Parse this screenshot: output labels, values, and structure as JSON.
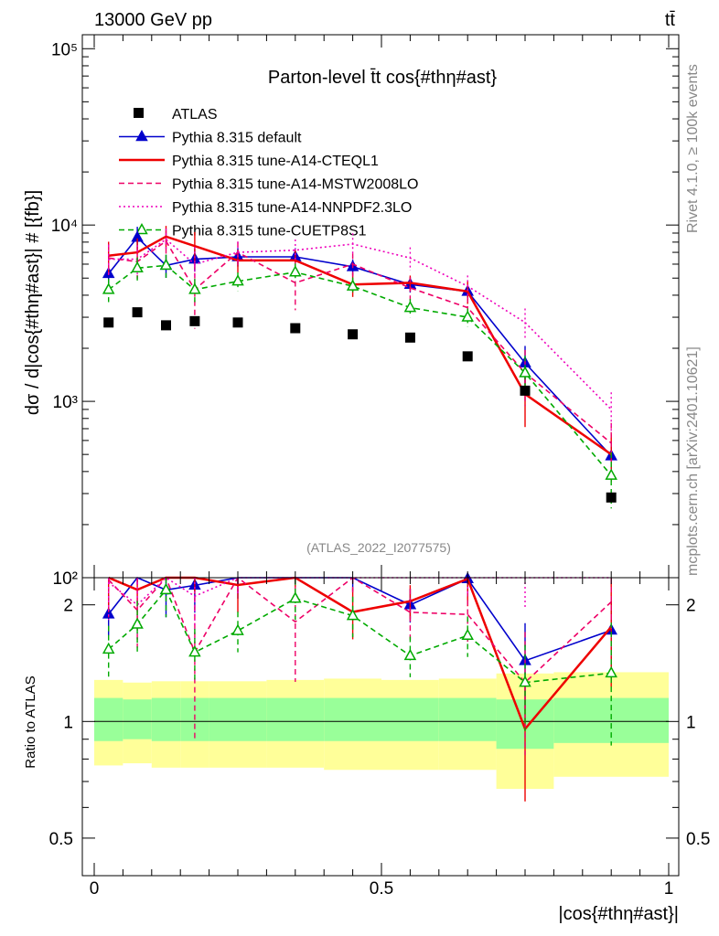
{
  "header": {
    "energy_label": "13000 GeV pp",
    "process_label": "tt̄"
  },
  "side_labels": {
    "rivet": "Rivet 4.1.0, ≥ 100k events",
    "mcplots": "mcplots.cern.ch [arXiv:2401.10621]"
  },
  "chart_data": {
    "type": "line",
    "title": "Parton-level t̄t cos{#thη#ast}",
    "analysis_tag": "(ATLAS_2022_I2077575)",
    "xlabel": "|cos{#thη#ast}|",
    "ylabel": "dσ / d|cos{#thη#ast}| # [{fb}]",
    "ratio_ylabel": "Ratio to ATLAS",
    "xlim": [
      0,
      1
    ],
    "ylim": [
      100,
      120000
    ],
    "ratio_ylim": [
      0.4,
      2.35
    ],
    "y_scale": "log",
    "x_ticks": [
      {
        "value": 0,
        "label": "0"
      },
      {
        "value": 0.5,
        "label": "0.5"
      },
      {
        "value": 1,
        "label": "1"
      }
    ],
    "y_ticks": [
      {
        "value": 100,
        "label": "10²"
      },
      {
        "value": 1000,
        "label": "10³"
      },
      {
        "value": 10000,
        "label": "10⁴"
      },
      {
        "value": 100000,
        "label": "10⁵"
      }
    ],
    "ratio_ticks": [
      {
        "value": 0.5,
        "label": "0.5"
      },
      {
        "value": 1,
        "label": "1"
      },
      {
        "value": 2,
        "label": "2"
      }
    ],
    "bins": [
      [
        0,
        0.05
      ],
      [
        0.05,
        0.1
      ],
      [
        0.1,
        0.15
      ],
      [
        0.15,
        0.2
      ],
      [
        0.2,
        0.3
      ],
      [
        0.3,
        0.4
      ],
      [
        0.4,
        0.5
      ],
      [
        0.5,
        0.6
      ],
      [
        0.6,
        0.7
      ],
      [
        0.7,
        0.8
      ],
      [
        0.8,
        1.0
      ]
    ],
    "x": [
      0.025,
      0.075,
      0.125,
      0.175,
      0.25,
      0.35,
      0.45,
      0.55,
      0.65,
      0.75,
      0.9
    ],
    "data": {
      "name": "ATLAS",
      "values": [
        2800,
        3200,
        2700,
        2850,
        2800,
        2600,
        2400,
        2300,
        1800,
        1150,
        285
      ]
    },
    "uncertainty_bands": {
      "stat_up": [
        1.15,
        1.14,
        1.15,
        1.15,
        1.15,
        1.15,
        1.15,
        1.15,
        1.15,
        1.14,
        1.15
      ],
      "stat_dn": [
        0.89,
        0.9,
        0.89,
        0.89,
        0.89,
        0.89,
        0.89,
        0.89,
        0.89,
        0.85,
        0.88
      ],
      "tot_up": [
        1.28,
        1.26,
        1.27,
        1.27,
        1.27,
        1.28,
        1.29,
        1.28,
        1.29,
        1.33,
        1.34
      ],
      "tot_dn": [
        0.77,
        0.78,
        0.76,
        0.76,
        0.76,
        0.76,
        0.75,
        0.75,
        0.75,
        0.67,
        0.72
      ]
    },
    "series": [
      {
        "name": "Pythia 8.315 default",
        "color": "#0000cc",
        "style": "solid",
        "marker": "triangle-filled",
        "values": [
          5300,
          8500,
          5900,
          6400,
          6600,
          6600,
          5800,
          4600,
          4200,
          1650,
          490
        ],
        "rel_err": [
          0.12,
          0.15,
          0.15,
          0.15,
          0.12,
          0.12,
          0.1,
          0.1,
          0.1,
          0.25,
          0.2
        ]
      },
      {
        "name": "Pythia 8.315 tune-A14-CTEQL1",
        "color": "#ee0000",
        "style": "solid",
        "marker": "none",
        "values": [
          6700,
          7000,
          8600,
          7600,
          6300,
          6300,
          4600,
          4700,
          4200,
          1100,
          500
        ],
        "rel_err": [
          0.2,
          0.2,
          0.15,
          0.2,
          0.15,
          0.15,
          0.15,
          0.1,
          0.15,
          0.35,
          0.3
        ]
      },
      {
        "name": "Pythia 8.315 tune-A14-MSTW2008LO",
        "color": "#ee0066",
        "style": "dashed",
        "marker": "none",
        "values": [
          6500,
          6200,
          8100,
          4300,
          7000,
          4700,
          6000,
          4400,
          3400,
          1450,
          580
        ],
        "rel_err": [
          0.2,
          0.2,
          0.15,
          0.4,
          0.15,
          0.3,
          0.15,
          0.15,
          0.15,
          0.35,
          0.3
        ]
      },
      {
        "name": "Pythia 8.315 tune-A14-NNPDF2.3LO",
        "color": "#ee00bb",
        "style": "dotted",
        "marker": "none",
        "values": [
          6400,
          6400,
          8300,
          6000,
          7000,
          7200,
          7800,
          6500,
          4500,
          2800,
          900
        ],
        "rel_err": [
          0.2,
          0.2,
          0.15,
          0.25,
          0.15,
          0.15,
          0.15,
          0.15,
          0.15,
          0.2,
          0.25
        ]
      },
      {
        "name": "Pythia 8.315 tune-CUETP8S1",
        "color": "#00aa00",
        "style": "dashed",
        "marker": "triangle-open",
        "values": [
          4300,
          5700,
          5900,
          4300,
          4800,
          5400,
          4500,
          3400,
          3000,
          1450,
          380
        ],
        "rel_err": [
          0.15,
          0.15,
          0.15,
          0.15,
          0.12,
          0.12,
          0.12,
          0.12,
          0.12,
          0.25,
          0.35
        ]
      }
    ]
  }
}
